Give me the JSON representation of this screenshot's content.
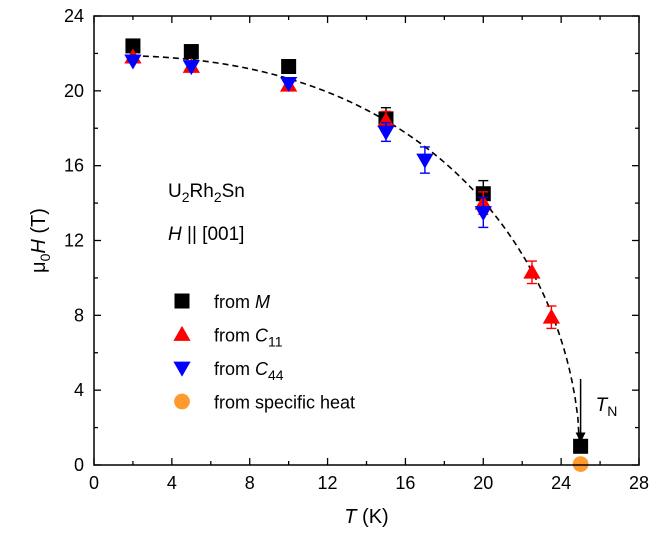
{
  "chart_data": {
    "type": "scatter",
    "xlabel": {
      "symbol": "T",
      "unit": " (K)"
    },
    "ylabel": {
      "pre": "μ",
      "sub": "0",
      "symbol": "H",
      "unit": " (T)"
    },
    "xlim": [
      0,
      28
    ],
    "ylim": [
      0,
      24
    ],
    "xticks": [
      "0",
      "4",
      "8",
      "12",
      "16",
      "20",
      "24",
      "28"
    ],
    "yticks": [
      "0",
      "4",
      "8",
      "12",
      "16",
      "20",
      "24"
    ],
    "annotations": {
      "compound": {
        "a": "U",
        "b": "2",
        "c": "Rh",
        "d": "2",
        "e": "Sn"
      },
      "field": {
        "sym": "H",
        "rest": " || [001]"
      },
      "tn": {
        "sym": "T",
        "sub": "N",
        "x": 25,
        "y_from": 4.6,
        "y_to": 1.2
      }
    },
    "fit_curve": {
      "style": "dashed",
      "Tn": 25,
      "H0": 21.9,
      "exponent": 2.4
    },
    "series": [
      {
        "legend_prefix": "from ",
        "legend_symbol": "M",
        "legend_sub": "",
        "marker": "square",
        "color": "#000000",
        "points": [
          {
            "x": 2,
            "y": 22.4
          },
          {
            "x": 5,
            "y": 22.1
          },
          {
            "x": 10,
            "y": 21.3
          },
          {
            "x": 15,
            "y": 18.5,
            "err": 0.6
          },
          {
            "x": 20,
            "y": 14.5,
            "err": 0.7
          },
          {
            "x": 25,
            "y": 1.0
          }
        ]
      },
      {
        "legend_prefix": "from ",
        "legend_symbol": "C",
        "legend_sub": "11",
        "marker": "triangle-up",
        "color": "#ff0000",
        "points": [
          {
            "x": 2,
            "y": 21.8
          },
          {
            "x": 5,
            "y": 21.3
          },
          {
            "x": 10,
            "y": 20.3
          },
          {
            "x": 15,
            "y": 18.4,
            "err": 0.5
          },
          {
            "x": 20,
            "y": 14.0,
            "err": 0.6
          },
          {
            "x": 22.5,
            "y": 10.3,
            "err": 0.6
          },
          {
            "x": 23.5,
            "y": 7.9,
            "err": 0.6
          }
        ]
      },
      {
        "legend_prefix": "from ",
        "legend_symbol": "C",
        "legend_sub": "44",
        "marker": "triangle-down",
        "color": "#0000ff",
        "points": [
          {
            "x": 2,
            "y": 21.6
          },
          {
            "x": 5,
            "y": 21.3
          },
          {
            "x": 10,
            "y": 20.4
          },
          {
            "x": 15,
            "y": 17.8,
            "err": 0.5
          },
          {
            "x": 17,
            "y": 16.3,
            "err": 0.7
          },
          {
            "x": 20,
            "y": 13.5,
            "err": 0.8
          }
        ]
      },
      {
        "legend_prefix": "from specific heat",
        "legend_symbol": "",
        "legend_sub": "",
        "marker": "circle",
        "color": "#ff9a2e",
        "points": [
          {
            "x": 25,
            "y": 0.05
          }
        ]
      }
    ],
    "legend_position": "lower-left"
  }
}
